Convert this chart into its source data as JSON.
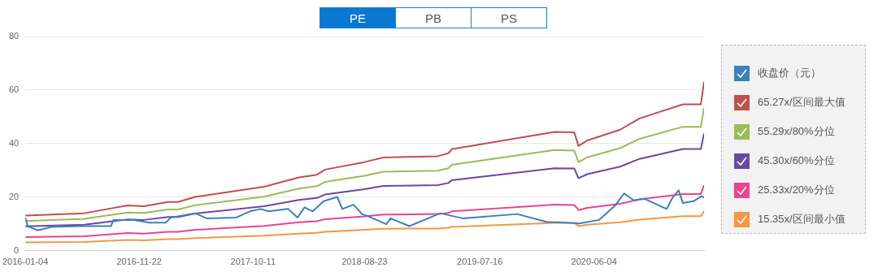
{
  "chart_data": {
    "type": "line",
    "annotations": [
      "PE",
      "PB",
      "PS"
    ],
    "xlim": [
      "2016-01-04",
      "2021-04-12"
    ],
    "xticks": [
      "2016-01-04",
      "2016-11-22",
      "2017-10-11",
      "2018-08-23",
      "2019-07-16",
      "2020-06-04"
    ],
    "ylim": [
      0,
      80
    ],
    "yticks": [
      0,
      20,
      40,
      60,
      80
    ],
    "grid": "y",
    "legend": "right",
    "marker": "none",
    "line_style": "solid",
    "series": [
      {
        "name": "收盘价（元）",
        "color": "#3d7fc0",
        "x": [
          "2016-01-04",
          "2016-01-11",
          "2016-02-08",
          "2016-03-18",
          "2016-06-03",
          "2016-09-03",
          "2016-09-10",
          "2016-11-05",
          "2016-12-21",
          "2017-02-06",
          "2017-02-19",
          "2017-04-30",
          "2017-06-01",
          "2017-08-24",
          "2017-10-02",
          "2017-11-01",
          "2017-11-24",
          "2018-01-19",
          "2018-02-14",
          "2018-03-06",
          "2018-03-29",
          "2018-04-29",
          "2018-06-07",
          "2018-06-21",
          "2018-07-23",
          "2018-08-16",
          "2018-08-29",
          "2018-10-24",
          "2018-11-05",
          "2018-12-28",
          "2019-03-26",
          "2019-05-28",
          "2019-10-30",
          "2020-01-21",
          "2020-03-17",
          "2020-04-23",
          "2020-06-18",
          "2020-08-03",
          "2020-08-28",
          "2020-09-25",
          "2020-10-25",
          "2020-12-27",
          "2021-01-14",
          "2021-01-30",
          "2021-02-11",
          "2021-03-13",
          "2021-04-05",
          "2021-04-12"
        ],
        "values": [
          12.4,
          9.2,
          7.6,
          8.9,
          9.2,
          9.2,
          11.5,
          11.5,
          10.5,
          10.5,
          12.4,
          14.0,
          12.1,
          12.4,
          14.7,
          15.6,
          14.7,
          15.6,
          12.4,
          16.2,
          14.7,
          18.5,
          20.1,
          15.6,
          17.2,
          13.7,
          13.1,
          9.9,
          12.1,
          9.2,
          14.0,
          12.1,
          13.7,
          10.8,
          10.5,
          10.2,
          11.5,
          16.9,
          21.4,
          18.8,
          19.4,
          15.6,
          20.1,
          22.6,
          17.8,
          18.5,
          20.4,
          19.8
        ]
      },
      {
        "name": "65.27x/区间最大值",
        "color": "#c0504d",
        "values": [
          13.1,
          14.0,
          16.9,
          16.6,
          18.2,
          18.2,
          20.1,
          23.9,
          27.4,
          28.4,
          30.3,
          33.1,
          34.8,
          35.3,
          36.4,
          37.9,
          44.4,
          44.2,
          39.1,
          41.2,
          45.2,
          49.4,
          54.7,
          54.7,
          63.1
        ]
      },
      {
        "name": "55.29x/80%分位",
        "color": "#9bbb59",
        "values": [
          11.1,
          11.9,
          14.3,
          14.1,
          15.4,
          15.4,
          17.0,
          20.2,
          23.2,
          24.1,
          25.7,
          28.0,
          29.5,
          29.9,
          30.8,
          32.1,
          37.6,
          37.4,
          33.1,
          34.9,
          38.3,
          41.8,
          46.3,
          46.3,
          53.4
        ]
      },
      {
        "name": "45.30x/60%分位",
        "color": "#6b48a0",
        "values": [
          9.1,
          9.7,
          11.7,
          11.5,
          12.6,
          12.6,
          13.9,
          16.6,
          19.0,
          19.7,
          21.0,
          23.0,
          24.2,
          24.5,
          25.3,
          26.3,
          30.8,
          30.7,
          27.1,
          28.6,
          31.4,
          34.3,
          38.0,
          38.0,
          43.8
        ]
      },
      {
        "name": "25.33x/20%分位",
        "color": "#e8458f",
        "values": [
          5.1,
          5.4,
          6.6,
          6.4,
          7.1,
          7.1,
          7.8,
          9.3,
          10.6,
          11.0,
          11.8,
          12.8,
          13.5,
          13.7,
          14.1,
          14.7,
          17.2,
          17.1,
          15.2,
          16.0,
          17.5,
          19.2,
          21.2,
          21.2,
          24.5
        ]
      },
      {
        "name": "15.35x/区间最小值",
        "color": "#f79646",
        "values": [
          3.1,
          3.3,
          4.0,
          3.9,
          4.3,
          4.3,
          4.7,
          5.6,
          6.4,
          6.7,
          7.1,
          7.8,
          8.2,
          8.3,
          8.6,
          8.9,
          10.4,
          10.4,
          9.2,
          9.7,
          10.6,
          11.6,
          12.9,
          12.9,
          14.8
        ]
      }
    ],
    "x": [
      "2016-01-04",
      "2016-06-19",
      "2016-10-20",
      "2016-12-05",
      "2017-02-12",
      "2017-03-12",
      "2017-04-30",
      "2017-11-11",
      "2018-02-18",
      "2018-04-10",
      "2018-05-03",
      "2018-08-23",
      "2018-10-15",
      "2019-03-19",
      "2019-04-18",
      "2019-04-27",
      "2020-02-13",
      "2020-04-09",
      "2020-04-21",
      "2020-05-16",
      "2020-08-17",
      "2020-10-11",
      "2021-02-11",
      "2021-04-03",
      "2021-04-12"
    ]
  }
}
